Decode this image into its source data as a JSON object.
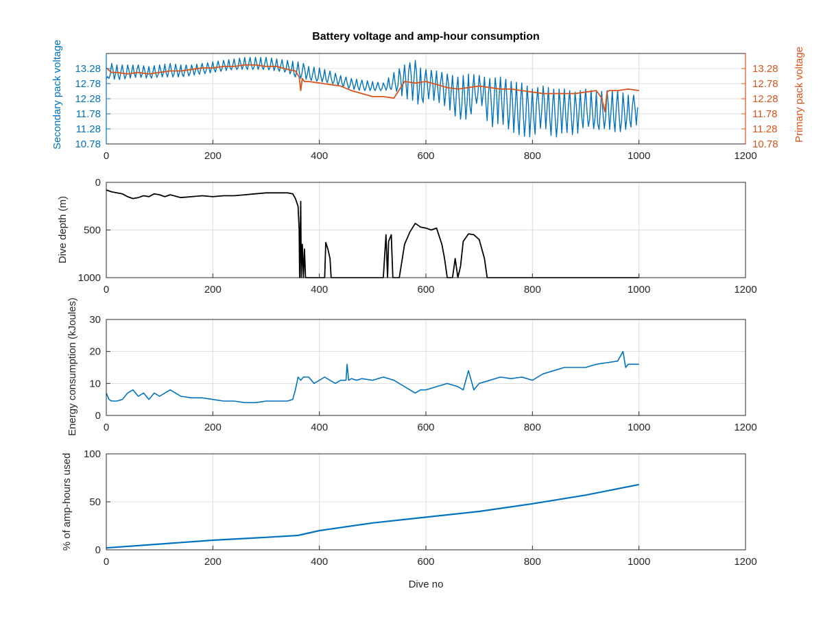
{
  "figure": {
    "title": "Battery voltage and amp-hour consumption"
  },
  "colors": {
    "secondary": "#0072BD",
    "primary": "#D95319",
    "depth": "#000000",
    "axes": "#262626",
    "grid": "#DCDCDC",
    "background": "#FFFFFF"
  },
  "chart_data": [
    {
      "id": "voltage",
      "type": "line",
      "title": "Battery voltage and amp-hour consumption",
      "xlabel": "",
      "xlim": [
        0,
        1200
      ],
      "xticks": [
        "0",
        "200",
        "400",
        "600",
        "800",
        "1000",
        "1200"
      ],
      "ylabel_left": "Secondary pack voltage",
      "ylabel_right": "Primary pack voltage",
      "ylim": [
        10.78,
        13.78
      ],
      "yticks": [
        "10.78",
        "11.28",
        "11.78",
        "12.28",
        "12.78",
        "13.28"
      ],
      "grid": true,
      "series": [
        {
          "name": "Secondary pack voltage",
          "axis": "left",
          "x": [
            0,
            10,
            20,
            40,
            60,
            80,
            100,
            120,
            140,
            160,
            180,
            200,
            220,
            240,
            260,
            280,
            300,
            320,
            340,
            360,
            370,
            380,
            400,
            420,
            440,
            460,
            480,
            500,
            520,
            540,
            560,
            580,
            590,
            600,
            620,
            640,
            660,
            680,
            700,
            720,
            740,
            760,
            780,
            800,
            820,
            840,
            860,
            880,
            900,
            920,
            940,
            960,
            980,
            1000
          ],
          "y": [
            12.95,
            13.2,
            13.1,
            13.15,
            13.2,
            13.1,
            13.15,
            13.2,
            13.15,
            13.2,
            13.25,
            13.3,
            13.35,
            13.35,
            13.4,
            13.4,
            13.4,
            13.35,
            13.3,
            13.1,
            13.25,
            13.05,
            13.0,
            12.95,
            12.85,
            12.75,
            12.7,
            12.65,
            12.65,
            12.75,
            12.95,
            13.1,
            12.4,
            12.85,
            12.7,
            12.65,
            12.3,
            12.2,
            12.6,
            12.2,
            12.4,
            12.0,
            11.9,
            11.8,
            12.1,
            11.7,
            11.9,
            11.8,
            11.9,
            11.6,
            11.9,
            11.8,
            11.7,
            12.2
          ],
          "low": [
            12.95,
            12.95,
            12.9,
            12.95,
            13.0,
            12.95,
            13.0,
            13.0,
            13.0,
            13.05,
            13.1,
            13.15,
            13.2,
            13.25,
            13.25,
            13.25,
            13.25,
            13.2,
            13.15,
            12.95,
            12.95,
            12.9,
            12.85,
            12.8,
            12.7,
            12.6,
            12.55,
            12.55,
            12.55,
            12.6,
            12.3,
            12.2,
            12.0,
            12.3,
            12.2,
            12.0,
            11.6,
            11.6,
            12.3,
            11.3,
            11.5,
            11.2,
            11.05,
            11.0,
            11.4,
            10.95,
            11.2,
            11.05,
            11.4,
            11.25,
            11.3,
            11.15,
            11.3,
            11.45
          ],
          "high": [
            12.95,
            13.45,
            13.4,
            13.4,
            13.4,
            13.35,
            13.4,
            13.45,
            13.4,
            13.4,
            13.45,
            13.5,
            13.55,
            13.6,
            13.65,
            13.65,
            13.65,
            13.6,
            13.55,
            13.5,
            13.45,
            13.35,
            13.3,
            13.2,
            13.05,
            12.95,
            12.9,
            12.85,
            12.8,
            13.15,
            13.4,
            13.55,
            13.3,
            13.25,
            13.2,
            13.1,
            13.0,
            13.1,
            13.05,
            12.95,
            13.0,
            12.85,
            12.8,
            12.6,
            12.7,
            12.6,
            12.6,
            12.5,
            12.6,
            12.5,
            12.55,
            12.55,
            12.4,
            12.4
          ]
        },
        {
          "name": "Primary pack voltage",
          "axis": "right",
          "x": [
            0,
            10,
            20,
            40,
            60,
            80,
            100,
            120,
            140,
            160,
            180,
            200,
            220,
            240,
            260,
            280,
            300,
            320,
            340,
            355,
            362,
            365,
            368,
            372,
            380,
            400,
            420,
            440,
            460,
            480,
            500,
            520,
            540,
            560,
            580,
            600,
            620,
            640,
            660,
            680,
            700,
            720,
            740,
            760,
            780,
            800,
            820,
            840,
            860,
            880,
            900,
            920,
            930,
            936,
            940,
            944,
            960,
            980,
            1000
          ],
          "y": [
            13.3,
            13.15,
            13.15,
            13.1,
            13.15,
            13.1,
            13.15,
            13.2,
            13.2,
            13.25,
            13.3,
            13.3,
            13.35,
            13.35,
            13.4,
            13.4,
            13.35,
            13.35,
            13.25,
            13.2,
            13.0,
            12.55,
            12.95,
            12.85,
            12.85,
            12.8,
            12.75,
            12.7,
            12.55,
            12.45,
            12.35,
            12.35,
            12.3,
            12.85,
            12.8,
            12.85,
            12.75,
            12.65,
            12.6,
            12.65,
            12.7,
            12.65,
            12.6,
            12.6,
            12.55,
            12.5,
            12.45,
            12.45,
            12.45,
            12.45,
            12.5,
            12.55,
            12.3,
            11.85,
            12.5,
            12.55,
            12.55,
            12.6,
            12.55
          ]
        }
      ]
    },
    {
      "id": "depth",
      "type": "line",
      "xlabel": "",
      "xlim": [
        0,
        1200
      ],
      "xticks": [
        "0",
        "200",
        "400",
        "600",
        "800",
        "1000",
        "1200"
      ],
      "ylabel": "Dive depth (m)",
      "ylim": [
        0,
        1000
      ],
      "y_reversed": true,
      "yticks": [
        "0",
        "500",
        "1000"
      ],
      "grid": true,
      "series": [
        {
          "x": [
            0,
            10,
            20,
            30,
            40,
            50,
            60,
            70,
            80,
            90,
            100,
            110,
            120,
            140,
            160,
            180,
            200,
            220,
            240,
            260,
            280,
            300,
            320,
            340,
            350,
            355,
            360,
            362,
            363,
            365,
            366,
            368,
            370,
            372,
            374,
            376,
            380,
            400,
            410,
            412,
            416,
            420,
            422,
            430,
            450,
            480,
            500,
            520,
            525,
            528,
            530,
            535,
            538,
            540,
            550,
            560,
            570,
            580,
            590,
            600,
            610,
            620,
            630,
            635,
            640,
            650,
            655,
            660,
            665,
            670,
            680,
            690,
            700,
            710,
            715,
            720,
            740,
            760,
            770,
            780,
            790,
            800,
            810,
            820,
            830,
            840,
            842,
            845,
            848,
            850,
            860,
            880,
            900,
            920,
            940,
            960,
            980,
            1000
          ],
          "y": [
            80,
            100,
            110,
            120,
            150,
            170,
            160,
            140,
            150,
            120,
            130,
            150,
            130,
            160,
            150,
            140,
            150,
            140,
            140,
            130,
            120,
            110,
            110,
            110,
            120,
            170,
            250,
            500,
            1000,
            200,
            1000,
            650,
            1000,
            700,
            1000,
            1000,
            1000,
            1000,
            1000,
            630,
            700,
            800,
            1000,
            1000,
            1000,
            1000,
            1000,
            1000,
            550,
            1000,
            620,
            550,
            1000,
            1000,
            1000,
            650,
            520,
            430,
            470,
            480,
            500,
            480,
            650,
            800,
            1000,
            1000,
            800,
            1000,
            880,
            620,
            540,
            550,
            600,
            800,
            1000,
            1000,
            1000,
            1000,
            1000,
            1000,
            1000,
            1000,
            1000,
            1000,
            1000,
            1000,
            1000,
            1000,
            1000,
            1000,
            1000,
            1000,
            1000,
            1000,
            1000,
            1000,
            1000,
            1000
          ],
          "color": "#000000"
        }
      ]
    },
    {
      "id": "energy",
      "type": "line",
      "xlabel": "",
      "xlim": [
        0,
        1200
      ],
      "xticks": [
        "0",
        "200",
        "400",
        "600",
        "800",
        "1000",
        "1200"
      ],
      "ylabel": "Energy consumption (kJoules)",
      "ylim": [
        0,
        30
      ],
      "yticks": [
        "0",
        "10",
        "20",
        "30"
      ],
      "grid": true,
      "series": [
        {
          "x": [
            0,
            5,
            10,
            20,
            30,
            40,
            50,
            60,
            70,
            80,
            90,
            100,
            110,
            120,
            130,
            140,
            160,
            180,
            200,
            220,
            240,
            260,
            280,
            300,
            320,
            340,
            350,
            355,
            360,
            365,
            370,
            380,
            390,
            400,
            410,
            420,
            430,
            440,
            450,
            452,
            455,
            460,
            470,
            480,
            500,
            520,
            540,
            560,
            570,
            580,
            590,
            600,
            620,
            640,
            660,
            670,
            680,
            690,
            700,
            720,
            740,
            760,
            780,
            800,
            810,
            820,
            840,
            860,
            880,
            900,
            920,
            940,
            960,
            970,
            975,
            980,
            1000
          ],
          "y": [
            7,
            5,
            4.5,
            4.5,
            5,
            7,
            8,
            6,
            7,
            5,
            7,
            6,
            7,
            8,
            7,
            6,
            5.5,
            5.5,
            5,
            4.5,
            4.5,
            4,
            4,
            4.5,
            4.5,
            4.5,
            5,
            8,
            12,
            11,
            12,
            12,
            10,
            11,
            12,
            11,
            10,
            11,
            11,
            16,
            11,
            11.5,
            11,
            11.5,
            11,
            12,
            11,
            9,
            8,
            7,
            8,
            8,
            9,
            10,
            9,
            8,
            14,
            8,
            10,
            11,
            12,
            11.5,
            12,
            11,
            12,
            13,
            14,
            15,
            15,
            15,
            16,
            16.5,
            17,
            20,
            15,
            16,
            16
          ]
        }
      ]
    },
    {
      "id": "amp_hours",
      "type": "line",
      "xlabel": "Dive no",
      "xlim": [
        0,
        1200
      ],
      "xticks": [
        "0",
        "200",
        "400",
        "600",
        "800",
        "1000",
        "1200"
      ],
      "ylabel": "% of amp-hours used",
      "ylim": [
        0,
        100
      ],
      "yticks": [
        "0",
        "50",
        "100"
      ],
      "grid": true,
      "series": [
        {
          "x": [
            0,
            100,
            200,
            300,
            360,
            400,
            500,
            600,
            700,
            800,
            900,
            1000
          ],
          "y": [
            2,
            6,
            10,
            13,
            15,
            20,
            28,
            34,
            40,
            48,
            57,
            68
          ]
        }
      ]
    }
  ]
}
